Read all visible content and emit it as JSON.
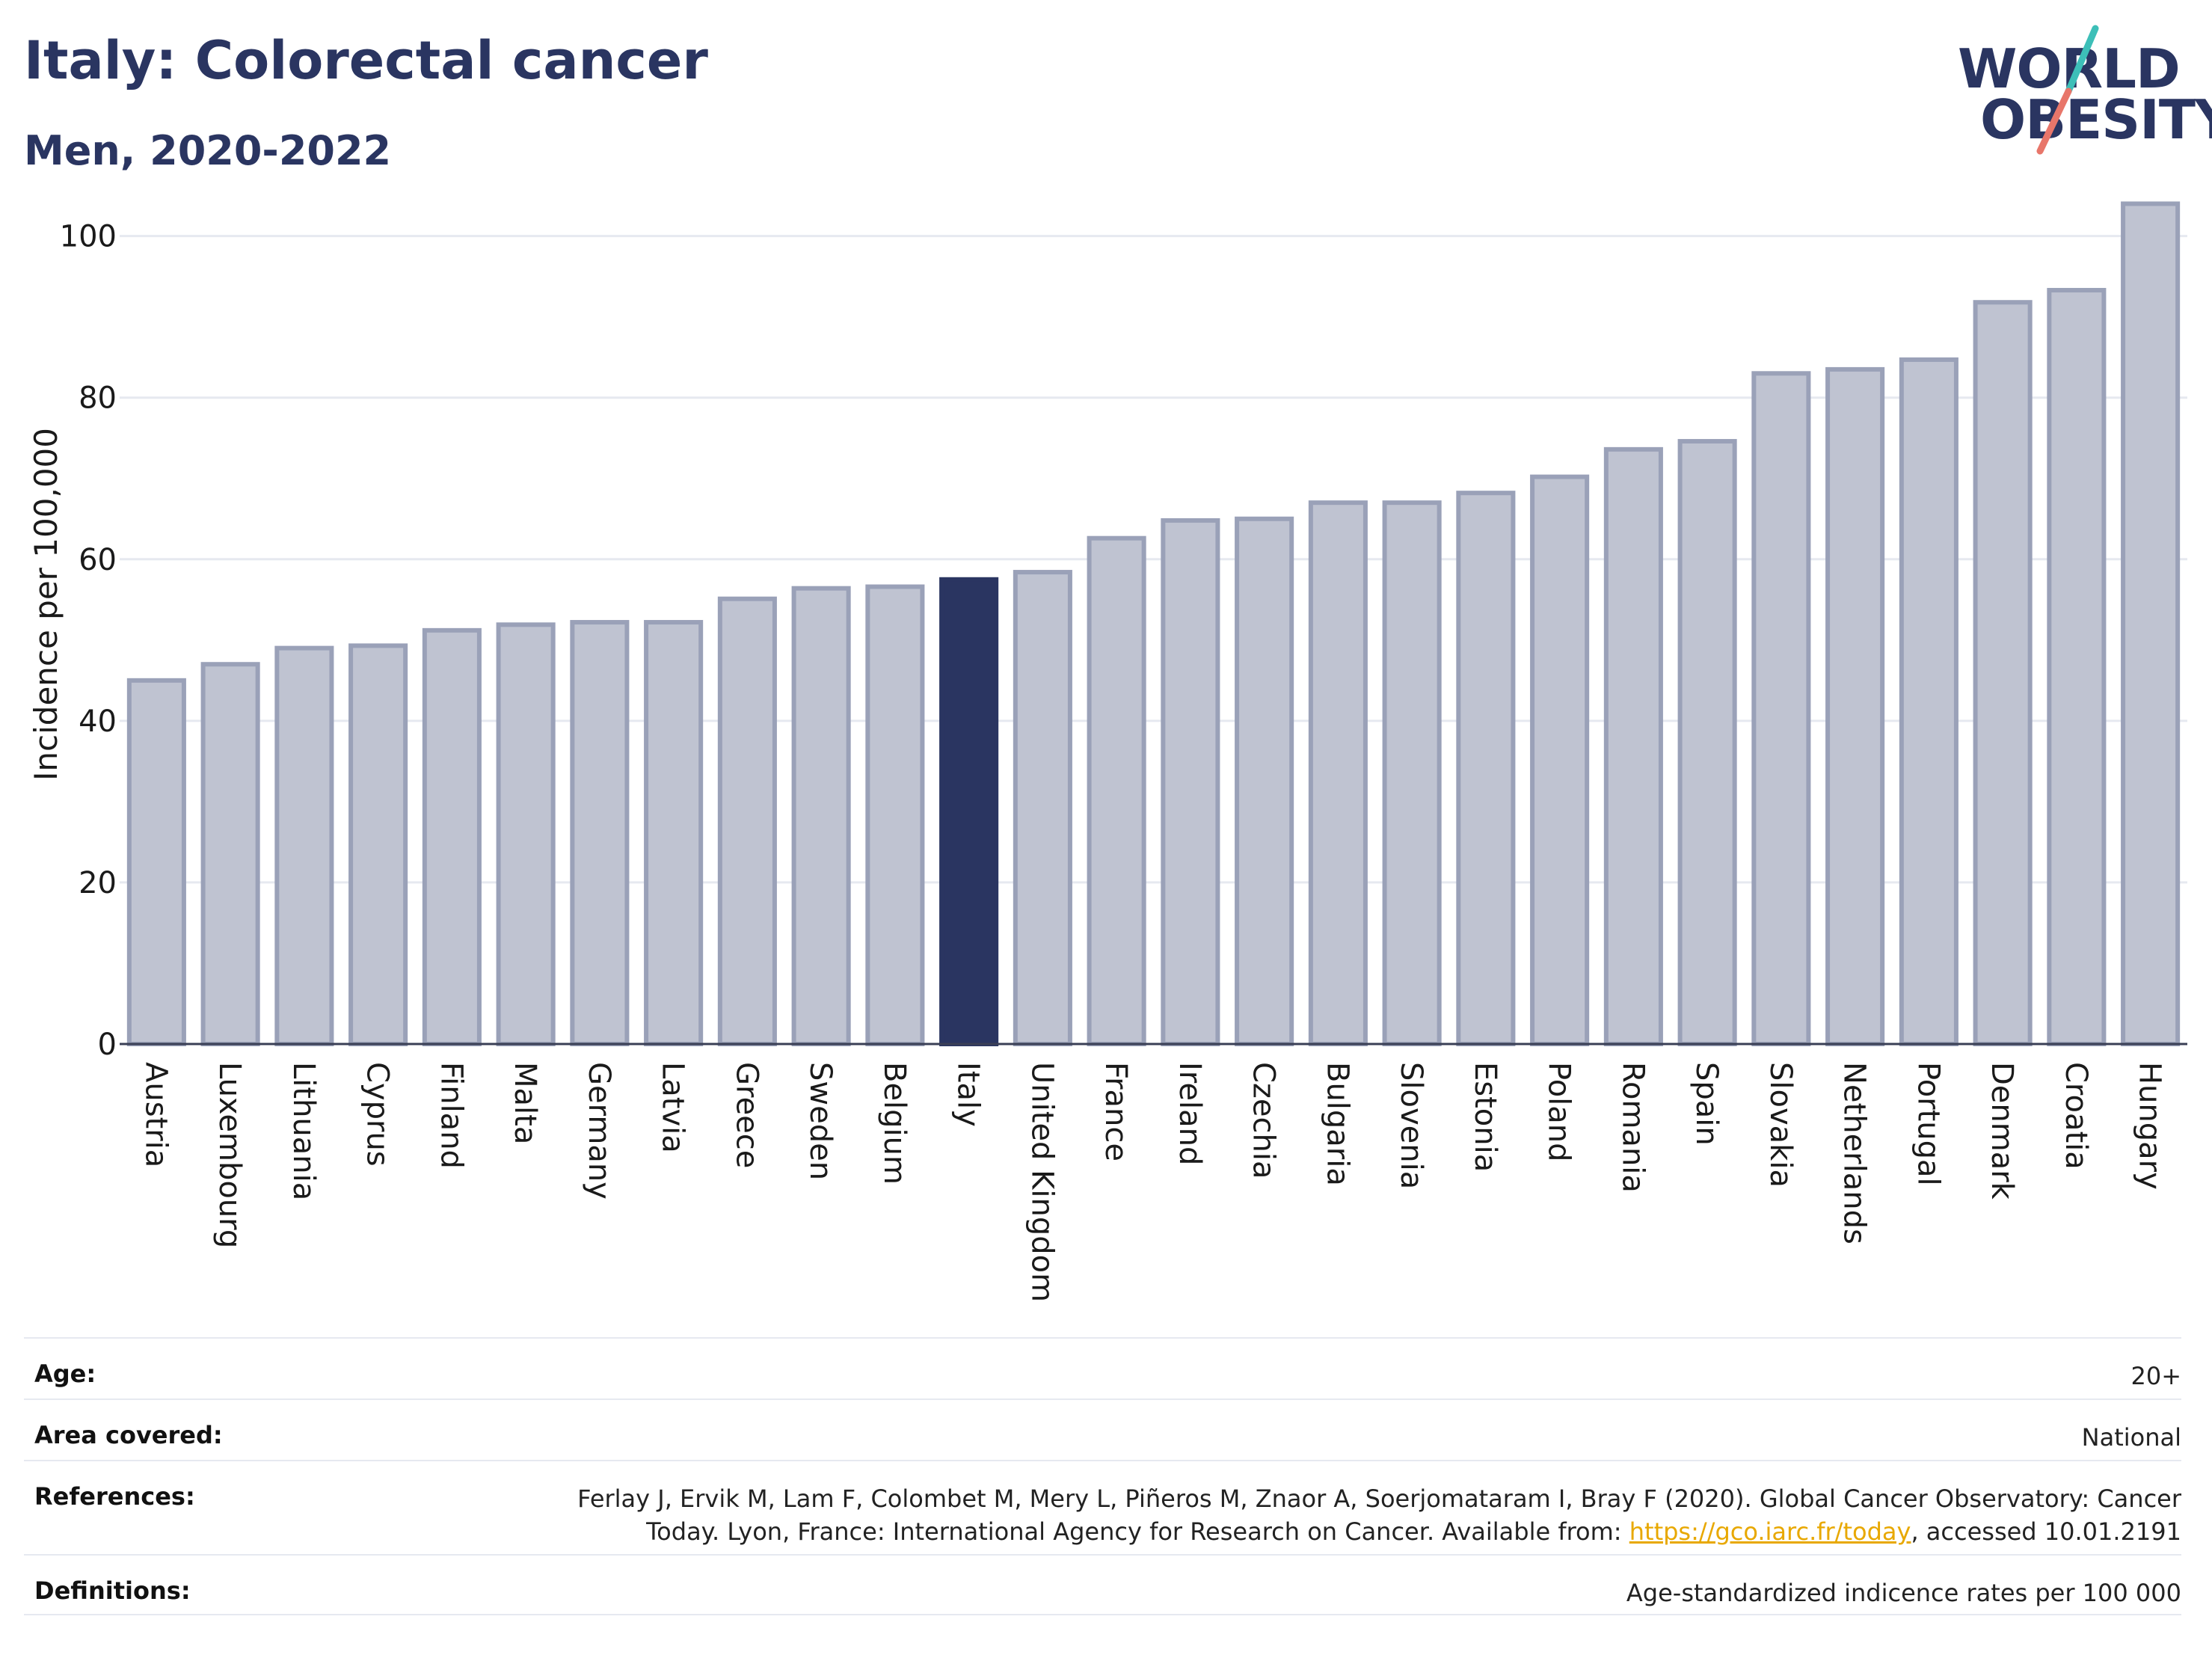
{
  "header": {
    "title": "Italy: Colorectal cancer",
    "subtitle": "Men, 2020-2022"
  },
  "logo": {
    "line1": "WORLD",
    "line2": "OBESITY",
    "accent_teal": "#3dbfb8",
    "accent_coral": "#e8766a"
  },
  "colors": {
    "bar_default": "#bfc3d1",
    "bar_default_border": "#9aa1b8",
    "bar_highlight": "#2a3561",
    "grid": "#e6e9f0",
    "text_dark": "#2a3561"
  },
  "chart_data": {
    "type": "bar",
    "ylabel": "Incidence per 100,000",
    "ylim": [
      0,
      107
    ],
    "yticks": [
      0,
      20,
      40,
      60,
      80,
      100
    ],
    "grid": true,
    "highlight": "Italy",
    "categories": [
      "Austria",
      "Luxembourg",
      "Lithuania",
      "Cyprus",
      "Finland",
      "Malta",
      "Germany",
      "Latvia",
      "Greece",
      "Sweden",
      "Belgium",
      "Italy",
      "United Kingdom",
      "France",
      "Ireland",
      "Czechia",
      "Bulgaria",
      "Slovenia",
      "Estonia",
      "Poland",
      "Romania",
      "Spain",
      "Slovakia",
      "Netherlands",
      "Portugal",
      "Denmark",
      "Croatia",
      "Hungary"
    ],
    "values": [
      45.0,
      47.0,
      49.0,
      49.3,
      51.2,
      51.9,
      52.2,
      52.2,
      55.1,
      56.4,
      56.6,
      57.5,
      58.4,
      62.6,
      64.8,
      65.0,
      67.0,
      67.0,
      68.2,
      70.2,
      73.6,
      74.6,
      83.0,
      83.5,
      84.7,
      91.8,
      93.3,
      104.0
    ]
  },
  "metadata": {
    "age_label": "Age:",
    "age_value": "20+",
    "area_label": "Area covered:",
    "area_value": "National",
    "references_label": "References:",
    "references_line1": "Ferlay J, Ervik M, Lam F, Colombet M, Mery L, Piñeros M, Znaor A, Soerjomataram I, Bray F (2020). Global Cancer Observatory: Cancer",
    "references_line2_pre": "Today. Lyon, France: International Agency for Research on Cancer. Available from: ",
    "references_link": "https://gco.iarc.fr/today",
    "references_line2_post": ", accessed 10.01.2191",
    "definitions_label": "Definitions:",
    "definitions_value": "Age-standardized indicence rates per 100 000"
  }
}
